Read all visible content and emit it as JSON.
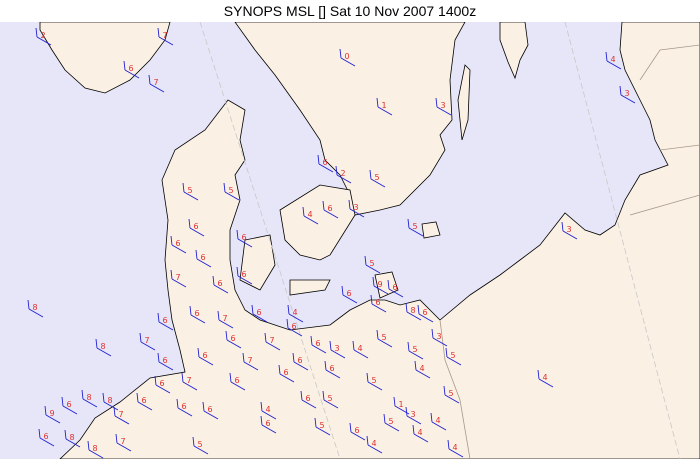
{
  "title": "SYNOPS MSL [] Sat 10 Nov 2007 1400z",
  "colors": {
    "sea": "#e6e6f8",
    "land": "#faf0e4",
    "coast": "#000000",
    "border": "#a89a88",
    "value": "#e03030",
    "barb": "#2020d0",
    "grid": "#c8c8c8"
  },
  "map": {
    "projection_grid_lines": "dashed-gray",
    "symbol": "wind-barb"
  },
  "stations": [
    "2",
    "7",
    "6",
    "7",
    "0",
    "1",
    "3",
    "4",
    "3",
    "6",
    "2",
    "5",
    "5",
    "5",
    "3",
    "4",
    "6",
    "6",
    "6",
    "6",
    "5",
    "3",
    "6",
    "6",
    "5",
    "7",
    "6",
    "6",
    "9",
    "6",
    "6",
    "8",
    "6",
    "7",
    "6",
    "6",
    "4",
    "8",
    "6",
    "6",
    "8",
    "7",
    "6",
    "7",
    "6",
    "3",
    "4",
    "5",
    "5",
    "3",
    "6",
    "6",
    "7",
    "6",
    "5",
    "7",
    "6",
    "6",
    "6",
    "5",
    "4",
    "4",
    "6",
    "8",
    "6",
    "8",
    "6",
    "6",
    "6",
    "4",
    "6",
    "5",
    "5",
    "9",
    "7",
    "1",
    "3",
    "4",
    "5",
    "6",
    "5",
    "6",
    "6",
    "8",
    "7",
    "5",
    "4",
    "4",
    "4",
    "8"
  ]
}
